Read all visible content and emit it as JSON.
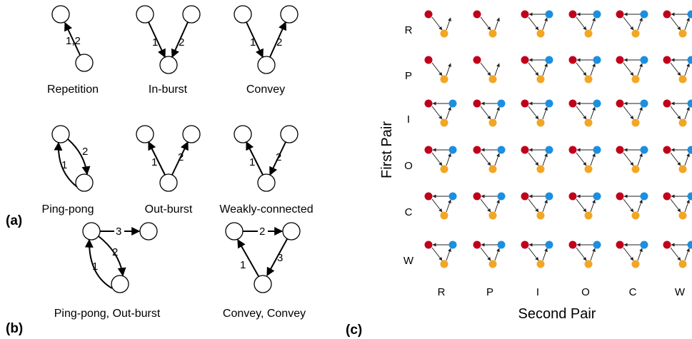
{
  "panel_labels": {
    "a": "(a)",
    "b": "(b)",
    "c": "(c)"
  },
  "motifs_a": [
    {
      "name": "Repetition",
      "edge_labels": [
        "1,2"
      ]
    },
    {
      "name": "In-burst",
      "edge_labels": [
        "1",
        "2"
      ]
    },
    {
      "name": "Convey",
      "edge_labels": [
        "1",
        "2"
      ]
    },
    {
      "name": "Ping-pong",
      "edge_labels": [
        "1",
        "2"
      ]
    },
    {
      "name": "Out-burst",
      "edge_labels": [
        "1",
        "2"
      ]
    },
    {
      "name": "Weakly-connected",
      "edge_labels": [
        "1",
        "2"
      ]
    }
  ],
  "motifs_b": [
    {
      "name": "Ping-pong, Out-burst",
      "edge_labels": [
        "1",
        "2",
        "3"
      ]
    },
    {
      "name": "Convey, Convey",
      "edge_labels": [
        "1",
        "2",
        "3"
      ]
    }
  ],
  "grid": {
    "rows": [
      "R",
      "P",
      "I",
      "O",
      "C",
      "W"
    ],
    "cols": [
      "R",
      "P",
      "I",
      "O",
      "C",
      "W"
    ],
    "y_axis_label": "First Pair",
    "x_axis_label": "Second Pair",
    "node_colors": {
      "red": "#c0001a",
      "blue": "#1b8fe0",
      "orange": "#f2a623"
    }
  }
}
